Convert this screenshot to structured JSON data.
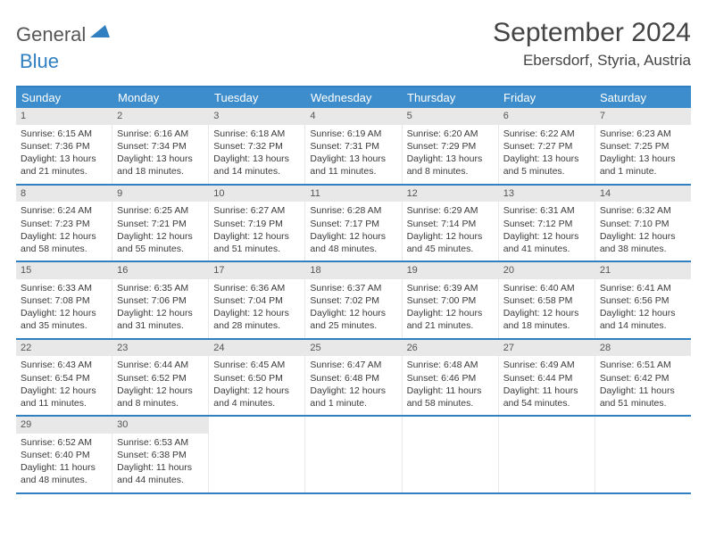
{
  "logo": {
    "word1": "General",
    "word2": "Blue"
  },
  "title": "September 2024",
  "location": "Ebersdorf, Styria, Austria",
  "header_bg": "#3d8ccc",
  "border_color": "#2f7fc1",
  "daynum_bg": "#e8e8e8",
  "weekday_labels": [
    "Sunday",
    "Monday",
    "Tuesday",
    "Wednesday",
    "Thursday",
    "Friday",
    "Saturday"
  ],
  "weeks": [
    [
      {
        "n": "1",
        "sr": "6:15 AM",
        "ss": "7:36 PM",
        "dl": "13 hours and 21 minutes."
      },
      {
        "n": "2",
        "sr": "6:16 AM",
        "ss": "7:34 PM",
        "dl": "13 hours and 18 minutes."
      },
      {
        "n": "3",
        "sr": "6:18 AM",
        "ss": "7:32 PM",
        "dl": "13 hours and 14 minutes."
      },
      {
        "n": "4",
        "sr": "6:19 AM",
        "ss": "7:31 PM",
        "dl": "13 hours and 11 minutes."
      },
      {
        "n": "5",
        "sr": "6:20 AM",
        "ss": "7:29 PM",
        "dl": "13 hours and 8 minutes."
      },
      {
        "n": "6",
        "sr": "6:22 AM",
        "ss": "7:27 PM",
        "dl": "13 hours and 5 minutes."
      },
      {
        "n": "7",
        "sr": "6:23 AM",
        "ss": "7:25 PM",
        "dl": "13 hours and 1 minute."
      }
    ],
    [
      {
        "n": "8",
        "sr": "6:24 AM",
        "ss": "7:23 PM",
        "dl": "12 hours and 58 minutes."
      },
      {
        "n": "9",
        "sr": "6:25 AM",
        "ss": "7:21 PM",
        "dl": "12 hours and 55 minutes."
      },
      {
        "n": "10",
        "sr": "6:27 AM",
        "ss": "7:19 PM",
        "dl": "12 hours and 51 minutes."
      },
      {
        "n": "11",
        "sr": "6:28 AM",
        "ss": "7:17 PM",
        "dl": "12 hours and 48 minutes."
      },
      {
        "n": "12",
        "sr": "6:29 AM",
        "ss": "7:14 PM",
        "dl": "12 hours and 45 minutes."
      },
      {
        "n": "13",
        "sr": "6:31 AM",
        "ss": "7:12 PM",
        "dl": "12 hours and 41 minutes."
      },
      {
        "n": "14",
        "sr": "6:32 AM",
        "ss": "7:10 PM",
        "dl": "12 hours and 38 minutes."
      }
    ],
    [
      {
        "n": "15",
        "sr": "6:33 AM",
        "ss": "7:08 PM",
        "dl": "12 hours and 35 minutes."
      },
      {
        "n": "16",
        "sr": "6:35 AM",
        "ss": "7:06 PM",
        "dl": "12 hours and 31 minutes."
      },
      {
        "n": "17",
        "sr": "6:36 AM",
        "ss": "7:04 PM",
        "dl": "12 hours and 28 minutes."
      },
      {
        "n": "18",
        "sr": "6:37 AM",
        "ss": "7:02 PM",
        "dl": "12 hours and 25 minutes."
      },
      {
        "n": "19",
        "sr": "6:39 AM",
        "ss": "7:00 PM",
        "dl": "12 hours and 21 minutes."
      },
      {
        "n": "20",
        "sr": "6:40 AM",
        "ss": "6:58 PM",
        "dl": "12 hours and 18 minutes."
      },
      {
        "n": "21",
        "sr": "6:41 AM",
        "ss": "6:56 PM",
        "dl": "12 hours and 14 minutes."
      }
    ],
    [
      {
        "n": "22",
        "sr": "6:43 AM",
        "ss": "6:54 PM",
        "dl": "12 hours and 11 minutes."
      },
      {
        "n": "23",
        "sr": "6:44 AM",
        "ss": "6:52 PM",
        "dl": "12 hours and 8 minutes."
      },
      {
        "n": "24",
        "sr": "6:45 AM",
        "ss": "6:50 PM",
        "dl": "12 hours and 4 minutes."
      },
      {
        "n": "25",
        "sr": "6:47 AM",
        "ss": "6:48 PM",
        "dl": "12 hours and 1 minute."
      },
      {
        "n": "26",
        "sr": "6:48 AM",
        "ss": "6:46 PM",
        "dl": "11 hours and 58 minutes."
      },
      {
        "n": "27",
        "sr": "6:49 AM",
        "ss": "6:44 PM",
        "dl": "11 hours and 54 minutes."
      },
      {
        "n": "28",
        "sr": "6:51 AM",
        "ss": "6:42 PM",
        "dl": "11 hours and 51 minutes."
      }
    ],
    [
      {
        "n": "29",
        "sr": "6:52 AM",
        "ss": "6:40 PM",
        "dl": "11 hours and 48 minutes."
      },
      {
        "n": "30",
        "sr": "6:53 AM",
        "ss": "6:38 PM",
        "dl": "11 hours and 44 minutes."
      },
      null,
      null,
      null,
      null,
      null
    ]
  ],
  "labels": {
    "sunrise": "Sunrise: ",
    "sunset": "Sunset: ",
    "daylight": "Daylight: "
  }
}
